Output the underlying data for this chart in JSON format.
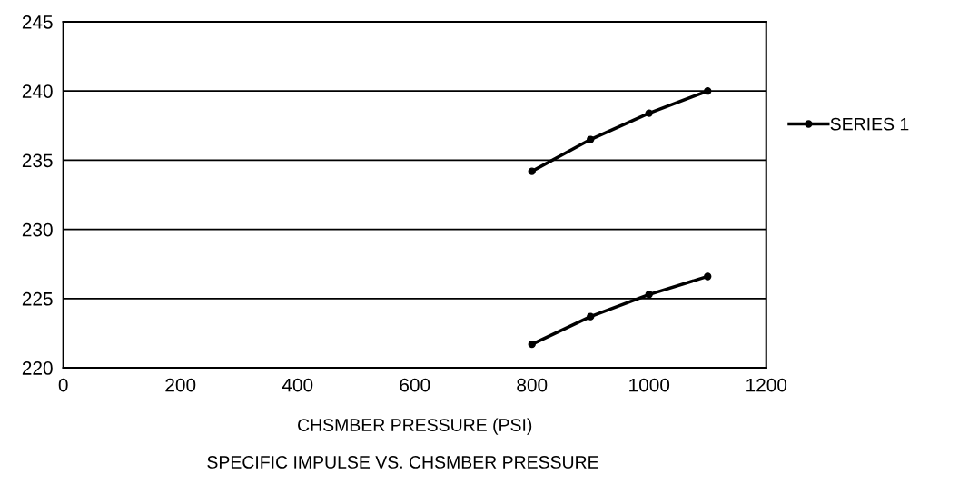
{
  "chart_data": {
    "type": "line",
    "title": "SPECIFIC IMPULSE VS. CHSMBER PRESSURE",
    "xlabel": "CHSMBER PRESSURE (PSI)",
    "x": [
      800,
      900,
      1000,
      1100
    ],
    "series": [
      {
        "name": "SERIES 1",
        "color": "#000000",
        "values": [
          234.2,
          236.5,
          238.4,
          240.0
        ]
      },
      {
        "color": "#000000",
        "values": [
          221.7,
          223.7,
          225.3,
          226.6
        ]
      }
    ],
    "xlim": [
      0,
      1200
    ],
    "xticks": [
      0,
      200,
      400,
      600,
      800,
      1000,
      1200
    ],
    "ylim": [
      220,
      245
    ],
    "yticks": [
      220,
      225,
      230,
      235,
      240,
      245
    ],
    "grid": "y",
    "legend": "right",
    "marker": "circle",
    "line_style": "solid"
  }
}
